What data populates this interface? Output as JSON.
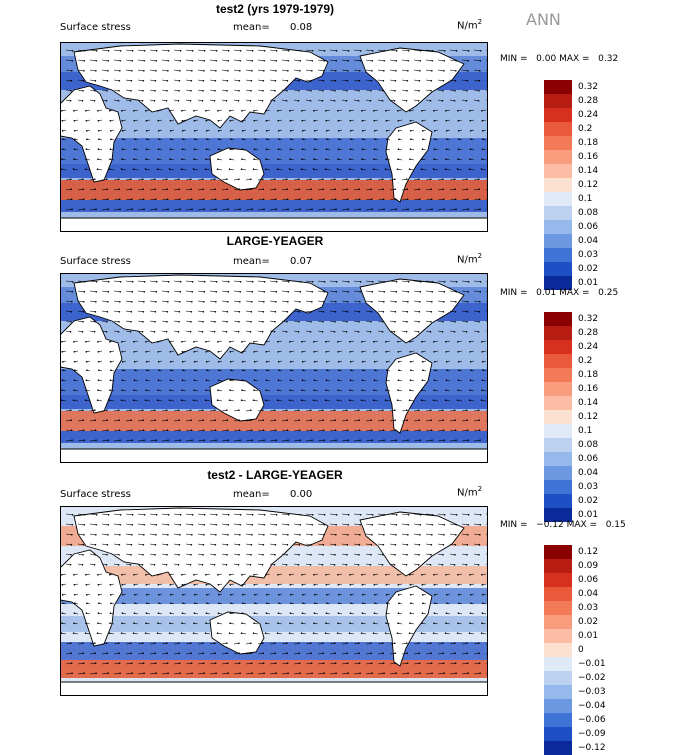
{
  "season": "ANN",
  "panels": [
    {
      "title": "test2 (yrs 1979-1979)",
      "variable": "Surface stress",
      "mean_label": "mean=",
      "mean_value": "0.08",
      "units_base": "N/m",
      "units_exp": "2",
      "min_label": "MIN =",
      "min_value": "0.00",
      "max_label": "MAX =",
      "max_value": "0.32",
      "levels": [
        "0.32",
        "0.28",
        "0.24",
        "0.2",
        "0.18",
        "0.16",
        "0.14",
        "0.12",
        "0.1",
        "0.08",
        "0.06",
        "0.04",
        "0.03",
        "0.02",
        "0.01"
      ],
      "colors": [
        "#8b0000",
        "#b81d13",
        "#d7301f",
        "#ea5a3a",
        "#f37a57",
        "#f79c7c",
        "#fbbda3",
        "#fde1d0",
        "#dfe9f7",
        "#bdd2f0",
        "#97b8ea",
        "#6b98e0",
        "#3f74d6",
        "#1f4fc4",
        "#0a2a9a"
      ]
    },
    {
      "title": "LARGE-YEAGER",
      "variable": "Surface stress",
      "mean_label": "mean=",
      "mean_value": "0.07",
      "units_base": "N/m",
      "units_exp": "2",
      "min_label": "MIN =",
      "min_value": "0.01",
      "max_label": "MAX =",
      "max_value": "0.25",
      "levels": [
        "0.32",
        "0.28",
        "0.24",
        "0.2",
        "0.18",
        "0.16",
        "0.14",
        "0.12",
        "0.1",
        "0.08",
        "0.06",
        "0.04",
        "0.03",
        "0.02",
        "0.01"
      ],
      "colors": [
        "#8b0000",
        "#b81d13",
        "#d7301f",
        "#ea5a3a",
        "#f37a57",
        "#f79c7c",
        "#fbbda3",
        "#fde1d0",
        "#dfe9f7",
        "#bdd2f0",
        "#97b8ea",
        "#6b98e0",
        "#3f74d6",
        "#1f4fc4",
        "#0a2a9a"
      ]
    },
    {
      "title": "test2 - LARGE-YEAGER",
      "variable": "Surface stress",
      "mean_label": "mean=",
      "mean_value": "0.00",
      "units_base": "N/m",
      "units_exp": "2",
      "min_label": "MIN =",
      "min_value": "−0.12",
      "max_label": "MAX =",
      "max_value": "0.15",
      "levels": [
        "0.12",
        "0.09",
        "0.06",
        "0.04",
        "0.03",
        "0.02",
        "0.01",
        "0",
        "−0.01",
        "−0.02",
        "−0.03",
        "−0.04",
        "−0.06",
        "−0.09",
        "−0.12"
      ],
      "colors": [
        "#8b0000",
        "#b81d13",
        "#d7301f",
        "#ea5a3a",
        "#f37a57",
        "#f79c7c",
        "#fbbda3",
        "#fde1d0",
        "#dfe9f7",
        "#bdd2f0",
        "#97b8ea",
        "#6b98e0",
        "#3f74d6",
        "#1f4fc4",
        "#0a2a9a"
      ]
    }
  ],
  "colors": {
    "ocean_low": "#2b54c8",
    "ocean_mid": "#9fbbe8",
    "ocean_high": "#e3552f",
    "land": "#ffffff",
    "coast": "#000000",
    "vector": "#000000"
  }
}
